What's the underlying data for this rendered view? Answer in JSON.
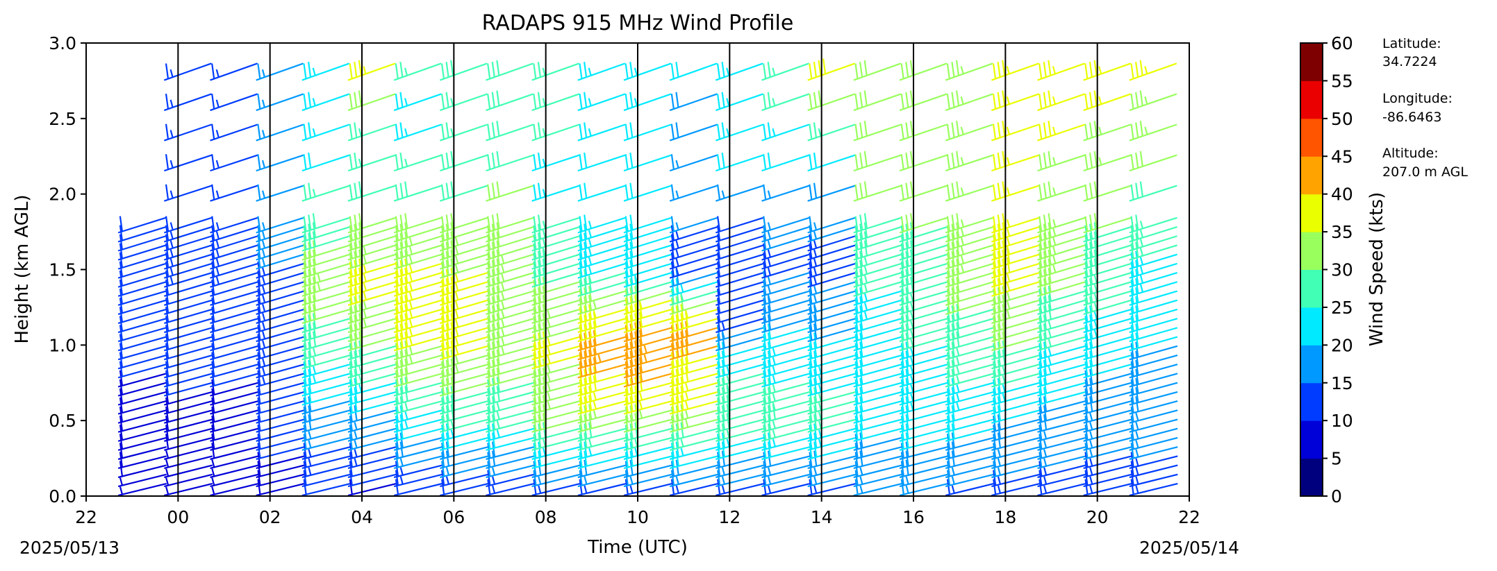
{
  "chart_data": {
    "type": "wind-barb time-height profile",
    "title": "RADAPS 915 MHz Wind Profile",
    "xlabel": "Time (UTC)",
    "ylabel": "Height (km AGL)",
    "x_tick_labels": [
      "22",
      "00",
      "02",
      "04",
      "06",
      "08",
      "10",
      "12",
      "14",
      "16",
      "18",
      "20",
      "22"
    ],
    "x_date_labels": {
      "start": "2025/05/13",
      "end": "2025/05/14"
    },
    "xlim_hours": [
      0,
      24
    ],
    "ylim": [
      0.0,
      3.0
    ],
    "y_tick_labels": [
      "0.0",
      "0.5",
      "1.0",
      "1.5",
      "2.0",
      "2.5",
      "3.0"
    ],
    "y_ticks": [
      0.0,
      0.5,
      1.0,
      1.5,
      2.0,
      2.5,
      3.0
    ],
    "hour_divider_lines": "black vertical line every 2 hours",
    "barb_times_hours": [
      1,
      2,
      3,
      4,
      5,
      6,
      7,
      8,
      9,
      10,
      11,
      12,
      13,
      14,
      15,
      16,
      17,
      18,
      19,
      20,
      21,
      22,
      23
    ],
    "barb_gates_km": {
      "low_mode_top": 1.85,
      "low_mode_step": 0.06,
      "high_mode_step": 0.2
    },
    "wind_speed_kts_by_hour": [
      [
        [
          0.0,
          7
        ],
        [
          0.8,
          10
        ],
        [
          1.2,
          12
        ],
        [
          1.8,
          12
        ]
      ],
      [
        [
          0.0,
          5
        ],
        [
          0.5,
          9
        ],
        [
          1.0,
          12
        ],
        [
          1.8,
          13
        ],
        [
          3.0,
          15
        ]
      ],
      [
        [
          0.0,
          6
        ],
        [
          0.5,
          9
        ],
        [
          1.0,
          11
        ],
        [
          1.5,
          13
        ],
        [
          3.0,
          15
        ]
      ],
      [
        [
          0.0,
          8
        ],
        [
          0.5,
          12
        ],
        [
          1.0,
          13
        ],
        [
          1.5,
          15
        ],
        [
          3.0,
          17
        ]
      ],
      [
        [
          0.0,
          10
        ],
        [
          0.5,
          18
        ],
        [
          1.0,
          28
        ],
        [
          1.4,
          33
        ],
        [
          1.8,
          28
        ],
        [
          2.2,
          22
        ],
        [
          3.0,
          24
        ]
      ],
      [
        [
          0.0,
          9
        ],
        [
          0.5,
          18
        ],
        [
          1.0,
          31
        ],
        [
          1.4,
          37
        ],
        [
          1.8,
          30
        ],
        [
          2.4,
          26
        ],
        [
          2.8,
          36
        ],
        [
          3.0,
          42
        ]
      ],
      [
        [
          0.0,
          10
        ],
        [
          0.5,
          24
        ],
        [
          1.0,
          36
        ],
        [
          1.4,
          37
        ],
        [
          1.8,
          31
        ],
        [
          2.4,
          24
        ],
        [
          3.0,
          26
        ]
      ],
      [
        [
          0.0,
          10
        ],
        [
          0.5,
          27
        ],
        [
          1.0,
          36
        ],
        [
          1.4,
          36
        ],
        [
          1.8,
          31
        ],
        [
          2.4,
          27
        ],
        [
          3.0,
          28
        ]
      ],
      [
        [
          0.0,
          11
        ],
        [
          0.5,
          26
        ],
        [
          1.0,
          34
        ],
        [
          1.5,
          33
        ],
        [
          2.0,
          30
        ],
        [
          3.0,
          29
        ]
      ],
      [
        [
          0.0,
          12
        ],
        [
          0.5,
          32
        ],
        [
          1.0,
          36
        ],
        [
          1.5,
          28
        ],
        [
          2.0,
          24
        ],
        [
          3.0,
          28
        ]
      ],
      [
        [
          0.0,
          11
        ],
        [
          0.5,
          33
        ],
        [
          0.9,
          43
        ],
        [
          1.2,
          37
        ],
        [
          1.5,
          24
        ],
        [
          2.0,
          22
        ],
        [
          3.0,
          24
        ]
      ],
      [
        [
          0.0,
          12
        ],
        [
          0.5,
          33
        ],
        [
          0.9,
          44
        ],
        [
          1.2,
          38
        ],
        [
          1.5,
          21
        ],
        [
          2.0,
          20
        ],
        [
          3.0,
          26
        ]
      ],
      [
        [
          0.0,
          11
        ],
        [
          0.5,
          34
        ],
        [
          1.1,
          42
        ],
        [
          1.5,
          14
        ],
        [
          2.0,
          16
        ],
        [
          3.0,
          22
        ]
      ],
      [
        [
          0.0,
          11
        ],
        [
          0.5,
          30
        ],
        [
          0.8,
          25
        ],
        [
          1.2,
          12
        ],
        [
          1.8,
          12
        ],
        [
          2.2,
          22
        ],
        [
          3.0,
          24
        ]
      ],
      [
        [
          0.0,
          12
        ],
        [
          0.5,
          28
        ],
        [
          1.0,
          22
        ],
        [
          1.5,
          14
        ],
        [
          2.0,
          17
        ],
        [
          2.5,
          26
        ],
        [
          3.0,
          28
        ]
      ],
      [
        [
          0.0,
          12
        ],
        [
          0.5,
          27
        ],
        [
          1.0,
          21
        ],
        [
          1.5,
          13
        ],
        [
          2.0,
          18
        ],
        [
          2.5,
          28
        ],
        [
          2.8,
          38
        ],
        [
          3.0,
          30
        ]
      ],
      [
        [
          0.0,
          15
        ],
        [
          0.5,
          22
        ],
        [
          1.0,
          20
        ],
        [
          1.5,
          27
        ],
        [
          2.0,
          30
        ],
        [
          3.0,
          31
        ]
      ],
      [
        [
          0.0,
          16
        ],
        [
          0.5,
          22
        ],
        [
          1.0,
          25
        ],
        [
          1.5,
          29
        ],
        [
          2.0,
          31
        ],
        [
          3.0,
          32
        ]
      ],
      [
        [
          0.0,
          14
        ],
        [
          0.5,
          22
        ],
        [
          1.0,
          28
        ],
        [
          1.5,
          33
        ],
        [
          2.0,
          33
        ],
        [
          3.0,
          34
        ]
      ],
      [
        [
          0.0,
          13
        ],
        [
          0.5,
          20
        ],
        [
          1.0,
          30
        ],
        [
          1.5,
          38
        ],
        [
          2.0,
          35
        ],
        [
          3.0,
          38
        ]
      ],
      [
        [
          0.0,
          13
        ],
        [
          0.5,
          18
        ],
        [
          1.0,
          25
        ],
        [
          1.5,
          33
        ],
        [
          2.0,
          34
        ],
        [
          3.0,
          38
        ]
      ],
      [
        [
          0.0,
          13
        ],
        [
          0.5,
          17
        ],
        [
          1.0,
          22
        ],
        [
          1.5,
          28
        ],
        [
          2.0,
          32
        ],
        [
          3.0,
          37
        ]
      ],
      [
        [
          0.0,
          13
        ],
        [
          0.5,
          17
        ],
        [
          1.0,
          20
        ],
        [
          1.5,
          24
        ],
        [
          2.0,
          30
        ],
        [
          3.0,
          38
        ]
      ]
    ],
    "colorbar": {
      "label": "Wind Speed (kts)",
      "ticks": [
        "0",
        "5",
        "10",
        "15",
        "20",
        "25",
        "30",
        "35",
        "40",
        "45",
        "50",
        "55",
        "60"
      ],
      "colors": [
        "#00007f",
        "#0000d8",
        "#003cff",
        "#0099ff",
        "#00eaff",
        "#41ffb4",
        "#99ff5d",
        "#eaff00",
        "#ffa300",
        "#ff5400",
        "#ea0000",
        "#7f0000"
      ]
    }
  },
  "station_info": {
    "latitude_label": "Latitude:",
    "latitude_value": "34.7224",
    "longitude_label": "Longitude:",
    "longitude_value": "-86.6463",
    "altitude_label": "Altitude:",
    "altitude_value": "207.0 m AGL"
  }
}
